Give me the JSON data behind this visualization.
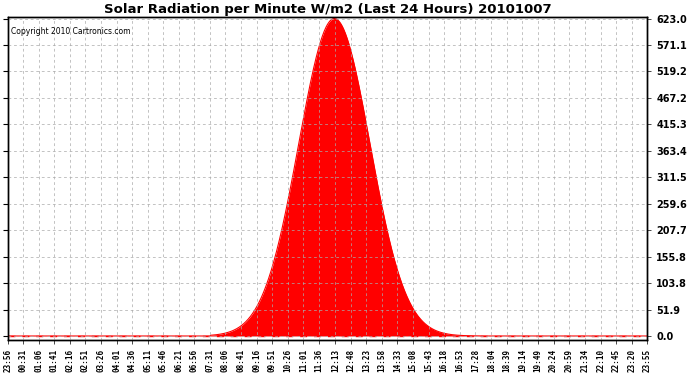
{
  "title": "Solar Radiation per Minute W/m2 (Last 24 Hours) 20101007",
  "copyright_text": "Copyright 2010 Cartronics.com",
  "fill_color": "#FF0000",
  "line_color": "#FF0000",
  "background_color": "#FFFFFF",
  "grid_color": "#AAAAAA",
  "dashed_line_color": "#FF0000",
  "y_ticks": [
    0.0,
    51.9,
    103.8,
    155.8,
    207.7,
    259.6,
    311.5,
    363.4,
    415.3,
    467.2,
    519.2,
    571.1,
    623.0
  ],
  "y_max": 623.0,
  "peak_value": 623.0,
  "peak_minute": 735,
  "sunrise_minute": 457,
  "sunset_minute": 1065,
  "num_minutes": 1440,
  "sigma_factor": 3.8
}
